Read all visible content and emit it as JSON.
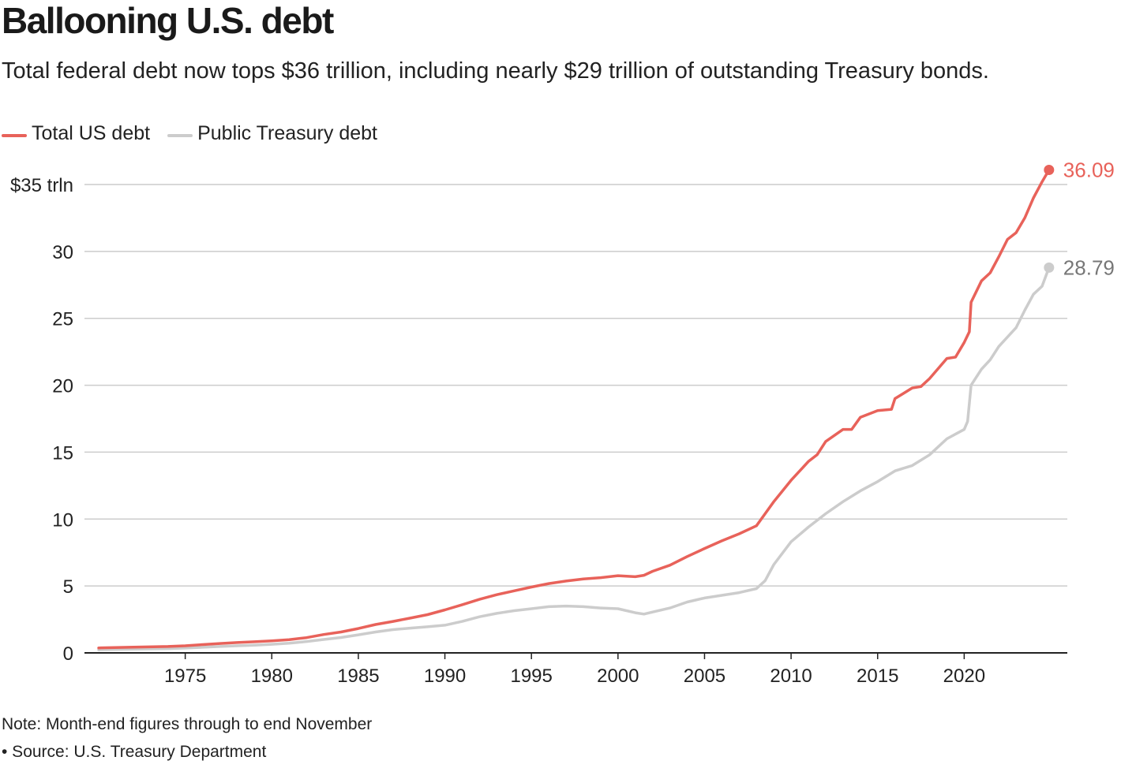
{
  "title": "Ballooning U.S. debt",
  "subtitle": "Total federal debt now tops $36 trillion, including nearly $29 trillion of outstanding Treasury bonds.",
  "footnote": {
    "note": "Note: Month-end figures through to end November",
    "source": "• Source: U.S. Treasury Department"
  },
  "colors": {
    "total": "#e8625a",
    "public": "#cccccc",
    "grid": "#cccccc",
    "axis": "#222222"
  },
  "chart_data": {
    "type": "line",
    "title": "Ballooning U.S. debt",
    "ylim": [
      0,
      35
    ],
    "xlim": [
      1970,
      2025
    ],
    "yticks": [
      0,
      5,
      10,
      15,
      20,
      25,
      30,
      35
    ],
    "ytick_labels": [
      "0",
      "5",
      "10",
      "15",
      "20",
      "25",
      "30",
      "$35 trln"
    ],
    "xticks": [
      1975,
      1980,
      1985,
      1990,
      1995,
      2000,
      2005,
      2010,
      2015,
      2020
    ],
    "xtick_labels": [
      "1975",
      "1980",
      "1985",
      "1990",
      "1995",
      "2000",
      "2005",
      "2010",
      "2015",
      "2020"
    ],
    "grid": true,
    "legend_position": "top-left",
    "series": [
      {
        "name": "Total US debt",
        "color": "#e8625a",
        "end_label": "36.09",
        "x": [
          1970.0,
          1972.0,
          1974.0,
          1975.0,
          1976.0,
          1977.0,
          1978.0,
          1979.0,
          1980.0,
          1981.0,
          1982.0,
          1983.0,
          1984.0,
          1985.0,
          1986.0,
          1987.0,
          1988.0,
          1989.0,
          1990.0,
          1991.0,
          1992.0,
          1993.0,
          1994.0,
          1995.0,
          1996.0,
          1997.0,
          1998.0,
          1999.0,
          2000.0,
          2001.0,
          2001.5,
          2002.0,
          2003.0,
          2004.0,
          2005.0,
          2006.0,
          2007.0,
          2008.0,
          2008.5,
          2009.0,
          2010.0,
          2011.0,
          2011.5,
          2012.0,
          2013.0,
          2013.5,
          2014.0,
          2015.0,
          2015.8,
          2016.0,
          2017.0,
          2017.5,
          2018.0,
          2019.0,
          2019.5,
          2020.0,
          2020.3,
          2020.4,
          2021.0,
          2021.5,
          2022.0,
          2022.5,
          2023.0,
          2023.5,
          2024.0,
          2024.5,
          2024.9
        ],
        "values": [
          0.37,
          0.43,
          0.48,
          0.53,
          0.62,
          0.7,
          0.77,
          0.83,
          0.9,
          0.99,
          1.14,
          1.37,
          1.56,
          1.82,
          2.12,
          2.35,
          2.6,
          2.86,
          3.21,
          3.6,
          4.0,
          4.35,
          4.64,
          4.92,
          5.18,
          5.37,
          5.52,
          5.62,
          5.77,
          5.69,
          5.8,
          6.1,
          6.55,
          7.2,
          7.8,
          8.37,
          8.9,
          9.5,
          10.4,
          11.3,
          12.9,
          14.3,
          14.8,
          15.8,
          16.7,
          16.7,
          17.6,
          18.1,
          18.2,
          19.0,
          19.8,
          19.9,
          20.5,
          22.0,
          22.1,
          23.2,
          24.0,
          26.2,
          27.8,
          28.4,
          29.6,
          30.9,
          31.4,
          32.5,
          34.0,
          35.2,
          36.09
        ]
      },
      {
        "name": "Public Treasury debt",
        "color": "#cccccc",
        "end_label": "28.79",
        "x": [
          1970.0,
          1972.0,
          1974.0,
          1975.0,
          1976.0,
          1977.0,
          1978.0,
          1979.0,
          1980.0,
          1981.0,
          1982.0,
          1983.0,
          1984.0,
          1985.0,
          1986.0,
          1987.0,
          1988.0,
          1989.0,
          1990.0,
          1991.0,
          1992.0,
          1993.0,
          1994.0,
          1995.0,
          1996.0,
          1997.0,
          1998.0,
          1999.0,
          2000.0,
          2001.0,
          2001.5,
          2002.0,
          2003.0,
          2004.0,
          2005.0,
          2006.0,
          2007.0,
          2008.0,
          2008.5,
          2009.0,
          2010.0,
          2011.0,
          2012.0,
          2013.0,
          2014.0,
          2015.0,
          2016.0,
          2017.0,
          2018.0,
          2019.0,
          2020.0,
          2020.2,
          2020.4,
          2021.0,
          2021.5,
          2022.0,
          2023.0,
          2023.5,
          2024.0,
          2024.5,
          2024.9
        ],
        "values": [
          0.23,
          0.28,
          0.32,
          0.36,
          0.42,
          0.48,
          0.53,
          0.58,
          0.64,
          0.72,
          0.85,
          1.0,
          1.15,
          1.35,
          1.56,
          1.74,
          1.85,
          1.95,
          2.07,
          2.35,
          2.7,
          2.95,
          3.15,
          3.3,
          3.45,
          3.5,
          3.45,
          3.35,
          3.3,
          3.0,
          2.9,
          3.05,
          3.35,
          3.8,
          4.1,
          4.3,
          4.5,
          4.8,
          5.4,
          6.6,
          8.3,
          9.4,
          10.4,
          11.3,
          12.1,
          12.8,
          13.6,
          14.0,
          14.8,
          16.0,
          16.7,
          17.3,
          20.0,
          21.2,
          21.9,
          22.9,
          24.3,
          25.6,
          26.8,
          27.4,
          28.79
        ]
      }
    ]
  }
}
